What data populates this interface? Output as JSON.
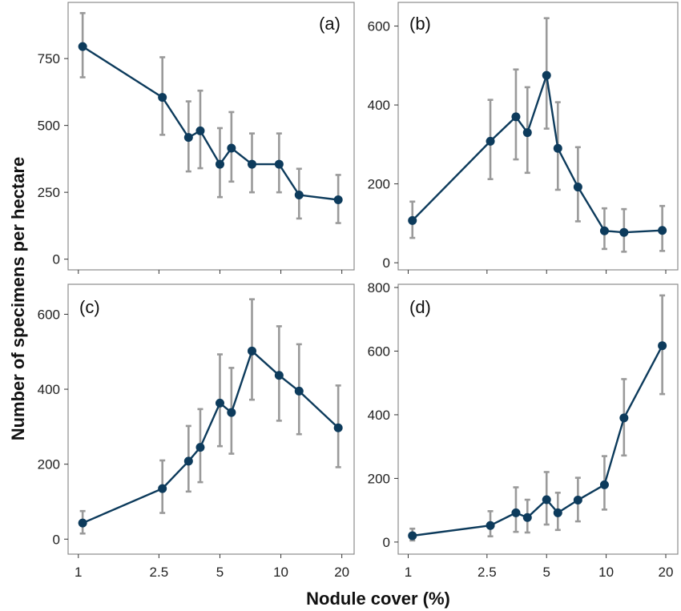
{
  "colors": {
    "series": "#0d3b5c",
    "error_bars": "#9a9a9a",
    "frame": "#8c8c8c"
  },
  "labels": {
    "xlabel": "Nodule cover (%)",
    "ylabel": "Number of specimens per hectare"
  },
  "chart_data": [
    {
      "type": "line",
      "panel_label": "(a)",
      "x_scale": "log",
      "x_ticks": [
        1,
        2.5,
        5,
        10,
        20
      ],
      "x_tick_labels": [
        "1",
        "2.5",
        "5",
        "10",
        "20"
      ],
      "xlim": [
        0.89,
        23
      ],
      "ylim": [
        -40,
        960
      ],
      "y_ticks": [
        0,
        250,
        500,
        750
      ],
      "y_tick_labels": [
        "0",
        "250",
        "500",
        "750"
      ],
      "grid": false,
      "points": [
        {
          "x": 1.05,
          "y": 795,
          "lo": 680,
          "hi": 920
        },
        {
          "x": 2.6,
          "y": 605,
          "lo": 465,
          "hi": 755
        },
        {
          "x": 3.5,
          "y": 455,
          "lo": 328,
          "hi": 590
        },
        {
          "x": 4.0,
          "y": 480,
          "lo": 340,
          "hi": 630
        },
        {
          "x": 5.0,
          "y": 355,
          "lo": 232,
          "hi": 490
        },
        {
          "x": 5.7,
          "y": 415,
          "lo": 290,
          "hi": 550
        },
        {
          "x": 7.2,
          "y": 355,
          "lo": 250,
          "hi": 470
        },
        {
          "x": 9.8,
          "y": 355,
          "lo": 250,
          "hi": 470
        },
        {
          "x": 12.3,
          "y": 240,
          "lo": 152,
          "hi": 338
        },
        {
          "x": 19.2,
          "y": 222,
          "lo": 135,
          "hi": 315
        }
      ]
    },
    {
      "type": "line",
      "panel_label": "(b)",
      "x_scale": "log",
      "x_ticks": [
        1,
        2.5,
        5,
        10,
        20
      ],
      "x_tick_labels": [
        "1",
        "2.5",
        "5",
        "10",
        "20"
      ],
      "xlim": [
        0.89,
        23
      ],
      "ylim": [
        -18,
        660
      ],
      "y_ticks": [
        0,
        200,
        400,
        600
      ],
      "y_tick_labels": [
        "0",
        "200",
        "400",
        "600"
      ],
      "grid": false,
      "points": [
        {
          "x": 1.05,
          "y": 107,
          "lo": 63,
          "hi": 155
        },
        {
          "x": 2.6,
          "y": 308,
          "lo": 212,
          "hi": 413
        },
        {
          "x": 3.5,
          "y": 370,
          "lo": 262,
          "hi": 490
        },
        {
          "x": 4.0,
          "y": 330,
          "lo": 228,
          "hi": 445
        },
        {
          "x": 5.0,
          "y": 475,
          "lo": 340,
          "hi": 620
        },
        {
          "x": 5.7,
          "y": 290,
          "lo": 185,
          "hi": 407
        },
        {
          "x": 7.2,
          "y": 192,
          "lo": 105,
          "hi": 293
        },
        {
          "x": 9.8,
          "y": 81,
          "lo": 35,
          "hi": 138
        },
        {
          "x": 12.3,
          "y": 77,
          "lo": 28,
          "hi": 136
        },
        {
          "x": 19.2,
          "y": 82,
          "lo": 30,
          "hi": 144
        }
      ]
    },
    {
      "type": "line",
      "panel_label": "(c)",
      "x_scale": "log",
      "x_ticks": [
        1,
        2.5,
        5,
        10,
        20
      ],
      "x_tick_labels": [
        "1",
        "2.5",
        "5",
        "10",
        "20"
      ],
      "xlim": [
        0.89,
        23
      ],
      "ylim": [
        -40,
        680
      ],
      "y_ticks": [
        0,
        200,
        400,
        600
      ],
      "y_tick_labels": [
        "0",
        "200",
        "400",
        "600"
      ],
      "grid": false,
      "points": [
        {
          "x": 1.05,
          "y": 43,
          "lo": 15,
          "hi": 75
        },
        {
          "x": 2.6,
          "y": 135,
          "lo": 70,
          "hi": 210
        },
        {
          "x": 3.5,
          "y": 208,
          "lo": 127,
          "hi": 302
        },
        {
          "x": 4.0,
          "y": 245,
          "lo": 152,
          "hi": 347
        },
        {
          "x": 5.0,
          "y": 363,
          "lo": 248,
          "hi": 493
        },
        {
          "x": 5.7,
          "y": 338,
          "lo": 228,
          "hi": 457
        },
        {
          "x": 7.2,
          "y": 502,
          "lo": 372,
          "hi": 640
        },
        {
          "x": 9.8,
          "y": 437,
          "lo": 316,
          "hi": 568
        },
        {
          "x": 12.3,
          "y": 395,
          "lo": 280,
          "hi": 520
        },
        {
          "x": 19.2,
          "y": 297,
          "lo": 192,
          "hi": 410
        }
      ]
    },
    {
      "type": "line",
      "panel_label": "(d)",
      "x_scale": "log",
      "x_ticks": [
        1,
        2.5,
        5,
        10,
        20
      ],
      "x_tick_labels": [
        "1",
        "2.5",
        "5",
        "10",
        "20"
      ],
      "xlim": [
        0.89,
        23
      ],
      "ylim": [
        -38,
        810
      ],
      "y_ticks": [
        0,
        200,
        400,
        600,
        800
      ],
      "y_tick_labels": [
        "0",
        "200",
        "400",
        "600",
        "800"
      ],
      "grid": false,
      "points": [
        {
          "x": 1.05,
          "y": 20,
          "lo": 5,
          "hi": 42
        },
        {
          "x": 2.6,
          "y": 52,
          "lo": 18,
          "hi": 97
        },
        {
          "x": 3.5,
          "y": 92,
          "lo": 32,
          "hi": 172
        },
        {
          "x": 4.0,
          "y": 77,
          "lo": 30,
          "hi": 133
        },
        {
          "x": 5.0,
          "y": 133,
          "lo": 55,
          "hi": 220
        },
        {
          "x": 5.7,
          "y": 92,
          "lo": 38,
          "hi": 155
        },
        {
          "x": 7.2,
          "y": 132,
          "lo": 65,
          "hi": 202
        },
        {
          "x": 9.8,
          "y": 180,
          "lo": 102,
          "hi": 270
        },
        {
          "x": 12.3,
          "y": 390,
          "lo": 272,
          "hi": 512
        },
        {
          "x": 19.2,
          "y": 617,
          "lo": 465,
          "hi": 775
        }
      ]
    }
  ]
}
